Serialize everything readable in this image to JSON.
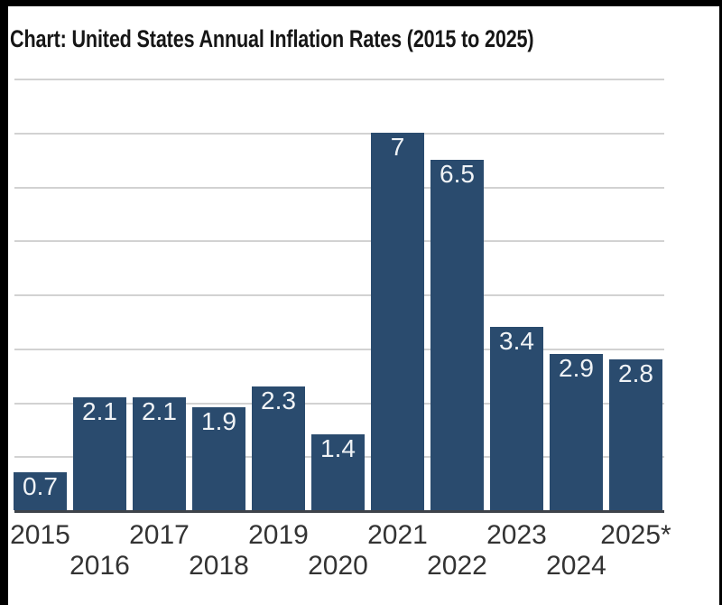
{
  "chart_data": {
    "type": "bar",
    "title": "Chart: United States Annual Inflation Rates (2015 to 2025)",
    "categories": [
      "2015",
      "2016",
      "2017",
      "2018",
      "2019",
      "2020",
      "2021",
      "2022",
      "2023",
      "2024",
      "2025*"
    ],
    "values": [
      0.7,
      2.1,
      2.1,
      1.9,
      2.3,
      1.4,
      7,
      6.5,
      3.4,
      2.9,
      2.8
    ],
    "bar_labels": [
      "0.7",
      "2.1",
      "2.1",
      "1.9",
      "2.3",
      "1.4",
      "7",
      "6.5",
      "3.4",
      "2.9",
      "2.8"
    ],
    "xlabel": "",
    "ylabel": "",
    "ylim": [
      0,
      8
    ],
    "gridline_values": [
      1,
      2,
      3,
      4,
      5,
      6,
      7,
      8
    ],
    "grid": "horizontal",
    "legend": "none",
    "value_labels_position": "inside-top"
  },
  "colors": {
    "bar": "#2a4b6e",
    "bar_label": "#f0f3f6",
    "title": "#161616",
    "axis_label": "#333333",
    "gridline": "#d2d2d2",
    "axis_line": "#3e434a",
    "frame": "#000000",
    "background": "#ffffff"
  }
}
